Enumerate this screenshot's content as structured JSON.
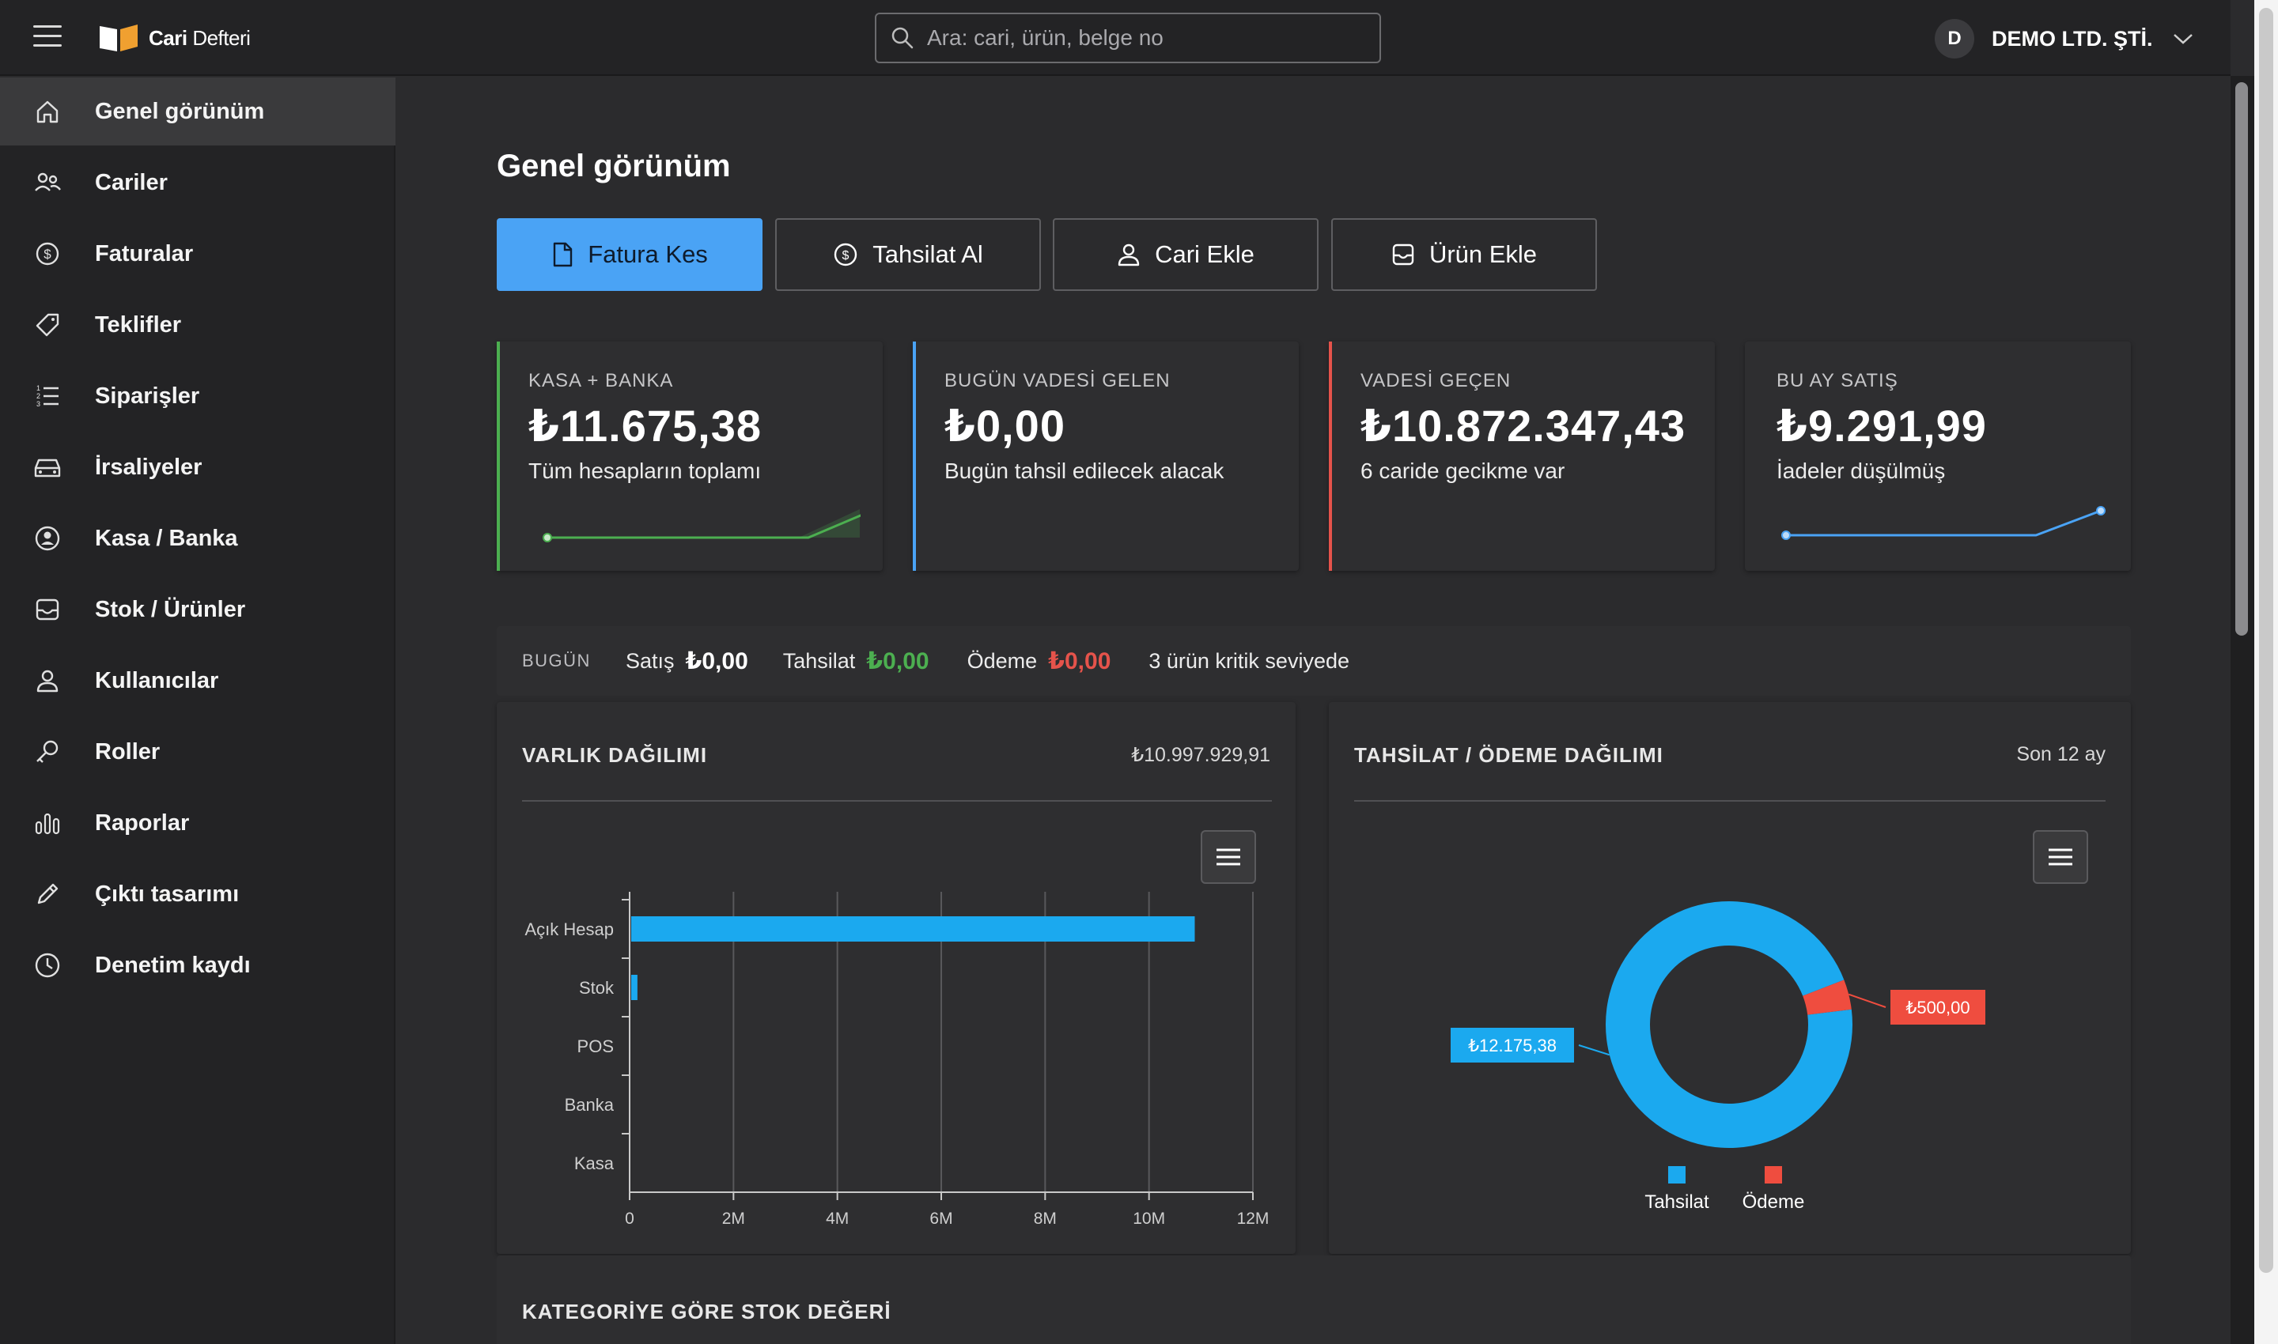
{
  "app": {
    "logo_bold": "Cari",
    "logo_light": "Defteri"
  },
  "search": {
    "placeholder": "Ara: cari, ürün, belge no"
  },
  "company": {
    "initial": "D",
    "name": "DEMO LTD. ŞTİ."
  },
  "sidebar": {
    "items": [
      {
        "label": "Genel görünüm",
        "icon": "home-icon",
        "active": true
      },
      {
        "label": "Cariler",
        "icon": "users-icon"
      },
      {
        "label": "Faturalar",
        "icon": "dollar-circle-icon"
      },
      {
        "label": "Teklifler",
        "icon": "tag-icon"
      },
      {
        "label": "Siparişler",
        "icon": "ordered-list-icon"
      },
      {
        "label": "İrsaliyeler",
        "icon": "car-icon"
      },
      {
        "label": "Kasa / Banka",
        "icon": "user-circle-icon"
      },
      {
        "label": "Stok / Ürünler",
        "icon": "inbox-icon"
      },
      {
        "label": "Kullanıcılar",
        "icon": "user-icon"
      },
      {
        "label": "Roller",
        "icon": "key-icon"
      },
      {
        "label": "Raporlar",
        "icon": "bar-chart-icon"
      },
      {
        "label": "Çıktı tasarımı",
        "icon": "pencil-icon"
      },
      {
        "label": "Denetim kaydı",
        "icon": "clock-icon"
      }
    ]
  },
  "main": {
    "title": "Genel görünüm",
    "actions": [
      {
        "label": "Fatura Kes",
        "icon": "file-icon",
        "primary": true
      },
      {
        "label": "Tahsilat Al",
        "icon": "dollar-circle-icon"
      },
      {
        "label": "Cari Ekle",
        "icon": "user-icon"
      },
      {
        "label": "Ürün Ekle",
        "icon": "inbox-icon"
      }
    ],
    "stats": [
      {
        "title": "KASA + BANKA",
        "value": "₺11.675,38",
        "sub": "Tüm hesapların toplamı",
        "color": "#4caf50"
      },
      {
        "title": "BUGÜN VADESİ GELEN",
        "value": "₺0,00",
        "sub": "Bugün tahsil edilecek alacak",
        "color": "#4aa3f5"
      },
      {
        "title": "VADESİ GEÇEN",
        "value": "₺10.872.347,43",
        "sub": "6 caride gecikme var",
        "color": "#e5534b"
      },
      {
        "title": "BU AY SATIŞ",
        "value": "₺9.291,99",
        "sub": "İadeler düşülmüş",
        "color": "#4aa3f5"
      }
    ],
    "today": {
      "label": "BUGÜN",
      "sales_label": "Satış",
      "sales_value": "₺0,00",
      "collection_label": "Tahsilat",
      "collection_value": "₺0,00",
      "payment_label": "Ödeme",
      "payment_value": "₺0,00",
      "critical": "3 ürün kritik seviyede",
      "collection_color": "#4caf50",
      "payment_color": "#e5534b"
    },
    "asset_panel": {
      "title": "VARLIK DAĞILIMI",
      "total": "₺10.997.929,91"
    },
    "flow_panel": {
      "title": "TAHSİLAT / ÖDEME DAĞILIMI",
      "period": "Son 12 ay"
    },
    "stock_panel": {
      "title": "KATEGORİYE GÖRE STOK DEĞERİ"
    }
  },
  "chart_data": [
    {
      "type": "bar",
      "orientation": "horizontal",
      "categories": [
        "Açık Hesap",
        "Stok",
        "POS",
        "Banka",
        "Kasa"
      ],
      "values": [
        10850000,
        120000,
        0,
        0,
        0
      ],
      "xlim": [
        0,
        12000000
      ],
      "xticks": [
        "0",
        "2M",
        "4M",
        "6M",
        "8M",
        "10M",
        "12M"
      ],
      "color": "#1ba9ef",
      "grid": true
    },
    {
      "type": "pie",
      "variant": "donut",
      "series": [
        {
          "name": "Tahsilat",
          "value": 12175.38,
          "label": "₺12.175,38",
          "color": "#1ba9ef"
        },
        {
          "name": "Ödeme",
          "value": 500.0,
          "label": "₺500,00",
          "color": "#ef4d3f"
        }
      ],
      "legend": "bottom"
    }
  ]
}
